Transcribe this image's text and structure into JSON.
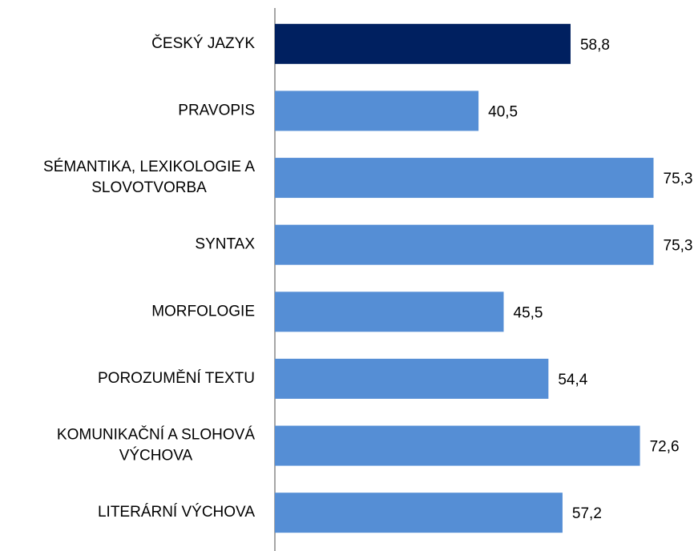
{
  "chart_data": {
    "type": "hbar",
    "categories": [
      "ČESKÝ JAZYK",
      "PRAVOPIS",
      "SÉMANTIKA, LEXIKOLOGIE A\nSLOVOTVORBA",
      "SYNTAX",
      "MORFOLOGIE",
      "POROZUMĚNÍ TEXTU",
      "KOMUNIKAČNÍ A SLOHOVÁ\nVÝCHOVA",
      "LITERÁRNÍ VÝCHOVA"
    ],
    "values": [
      58.8,
      40.5,
      75.3,
      75.3,
      45.5,
      54.4,
      72.6,
      57.2
    ],
    "value_labels": [
      "58,8",
      "40,5",
      "75,3",
      "75,3",
      "45,5",
      "54,4",
      "72,6",
      "57,2"
    ],
    "colors": [
      "#002060",
      "#558ed5",
      "#558ed5",
      "#558ed5",
      "#558ed5",
      "#558ed5",
      "#558ed5",
      "#558ed5"
    ],
    "xlim": [
      0,
      80
    ]
  }
}
